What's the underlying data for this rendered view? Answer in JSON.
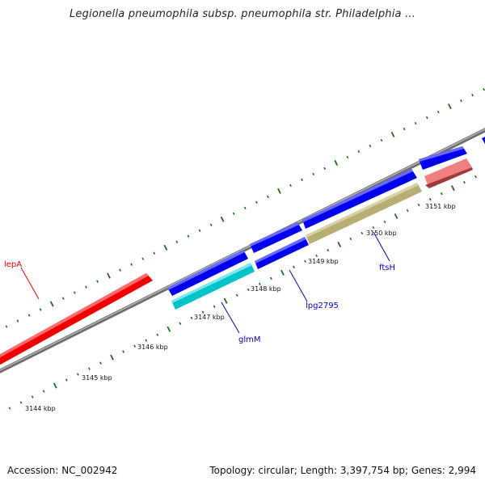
{
  "title": "Legionella pneumophila subsp. pneumophila str. Philadelphia ...",
  "footer": {
    "accession": "Accession: NC_002942",
    "stats": "Topology: circular; Length: 3,397,754 bp; Genes: 2,994"
  },
  "kbp_ticks": [
    "3144 kbp",
    "3145 kbp",
    "3146 kbp",
    "3147 kbp",
    "3148 kbp",
    "3149 kbp",
    "3150 kbp",
    "3151 kbp"
  ],
  "gene_labels": [
    {
      "name": "lepA",
      "color": "#ee0000"
    },
    {
      "name": "glmM",
      "color": "#0000cc"
    },
    {
      "name": "lpg2795",
      "color": "#0000cc"
    },
    {
      "name": "ftsH",
      "color": "#0000cc"
    }
  ],
  "feature_colors": {
    "lepA": "#ee0000",
    "cds_forward": "#0000ee",
    "glmM": "#00bfc7",
    "ftsH": "#b6ae72",
    "reverse_gene": "#ee8080",
    "backbone": "#8a8a8a",
    "tick": "#1f6b1f"
  }
}
